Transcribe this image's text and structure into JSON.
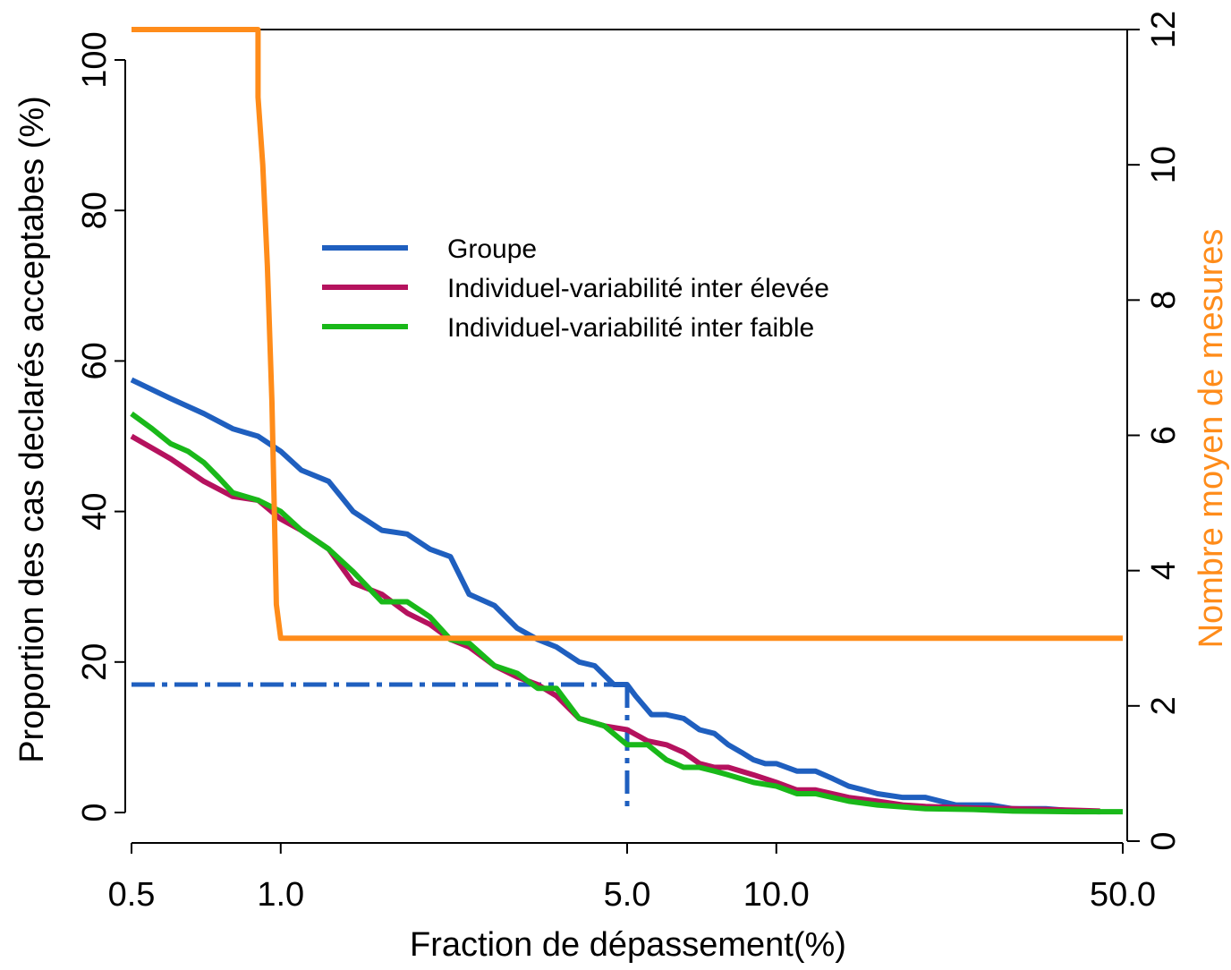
{
  "chart_data": {
    "type": "line",
    "x_scale": "log",
    "xlabel": "Fraction de dépassement(%)",
    "ylabel_left": "Proportion des cas declarés acceptabes (%)",
    "ylabel_right": "Nombre moyen de mesures",
    "xlim": [
      0.5,
      50
    ],
    "ylim_left": [
      0,
      104
    ],
    "ylim_right": [
      0,
      12
    ],
    "x_ticks": [
      0.5,
      1.0,
      5.0,
      10.0,
      50.0
    ],
    "x_tick_labels": [
      "0.5",
      "1.0",
      "5.0",
      "10.0",
      "50.0"
    ],
    "y_ticks_left": [
      0,
      20,
      40,
      60,
      80,
      100
    ],
    "y_tick_labels_left": [
      "0",
      "20",
      "40",
      "60",
      "80",
      "100"
    ],
    "y_ticks_right": [
      0,
      2,
      4,
      6,
      8,
      10,
      12
    ],
    "y_tick_labels_right": [
      "0",
      "2",
      "4",
      "6",
      "8",
      "10",
      "12"
    ],
    "grid": false,
    "legend_position": "top-center",
    "series": [
      {
        "name": "Groupe",
        "axis": "left",
        "color": "#1f5fbf",
        "x": [
          0.5,
          0.6,
          0.7,
          0.8,
          0.9,
          1.0,
          1.1,
          1.25,
          1.4,
          1.6,
          1.8,
          2.0,
          2.2,
          2.4,
          2.7,
          3.0,
          3.3,
          3.6,
          4.0,
          4.3,
          4.7,
          5.0,
          5.2,
          5.6,
          6.0,
          6.5,
          7.0,
          7.5,
          8.0,
          8.5,
          9.0,
          9.5,
          10.0,
          11.0,
          12.0,
          13.0,
          14.0,
          15.0,
          16.0,
          18.0,
          20.0,
          23.0,
          27.0,
          30.0,
          35.0,
          40.0,
          45.0
        ],
        "values": [
          57.5,
          55,
          53,
          51,
          50,
          48,
          45.5,
          44,
          40,
          37.5,
          37,
          35,
          34,
          29,
          27.5,
          24.5,
          23,
          22,
          20,
          19.5,
          17,
          17,
          15.5,
          13,
          13,
          12.5,
          11,
          10.5,
          9,
          8,
          7,
          6.5,
          6.5,
          5.5,
          5.5,
          4.5,
          3.5,
          3,
          2.5,
          2,
          2,
          1,
          1,
          0.5,
          0.5,
          0.2,
          0.1
        ]
      },
      {
        "name": "Individuel-variabilité inter élevée",
        "axis": "left",
        "color": "#b5125e",
        "x": [
          0.5,
          0.6,
          0.7,
          0.8,
          0.9,
          1.0,
          1.1,
          1.25,
          1.4,
          1.6,
          1.8,
          2.0,
          2.2,
          2.4,
          2.7,
          3.0,
          3.3,
          3.6,
          4.0,
          4.5,
          5.0,
          5.5,
          6.0,
          6.5,
          7.0,
          7.5,
          8.0,
          9.0,
          10.0,
          11.0,
          12.0,
          14.0,
          16.0,
          18.0,
          20.0,
          25.0,
          30.0,
          40.0,
          45.0
        ],
        "values": [
          50,
          47,
          44,
          42,
          41.5,
          39,
          37.5,
          35,
          30.5,
          29,
          26.5,
          25,
          23,
          22,
          19.5,
          18,
          17,
          15.5,
          12.5,
          11.5,
          11,
          9.5,
          9,
          8,
          6.5,
          6,
          6,
          5,
          4,
          3,
          3,
          2,
          1.5,
          1,
          0.8,
          0.6,
          0.5,
          0.3,
          0.2
        ]
      },
      {
        "name": "Individuel-variabilité inter faible",
        "axis": "left",
        "color": "#19b819",
        "x": [
          0.5,
          0.55,
          0.6,
          0.65,
          0.7,
          0.75,
          0.8,
          0.9,
          1.0,
          1.1,
          1.25,
          1.4,
          1.6,
          1.8,
          2.0,
          2.2,
          2.4,
          2.7,
          3.0,
          3.3,
          3.6,
          4.0,
          4.5,
          5.0,
          5.5,
          6.0,
          6.5,
          7.0,
          7.5,
          8.0,
          9.0,
          10.0,
          11.0,
          12.0,
          14.0,
          16.0,
          20.0,
          25.0,
          30.0,
          40.0,
          50.0
        ],
        "values": [
          53,
          51,
          49,
          48,
          46.5,
          44.5,
          42.5,
          41.5,
          40,
          37.5,
          35,
          32,
          28,
          28,
          26,
          23,
          22.5,
          19.5,
          18.5,
          16.5,
          16.5,
          12.5,
          11.5,
          9,
          9,
          7,
          6,
          6,
          5.5,
          5,
          4,
          3.5,
          2.5,
          2.5,
          1.5,
          1,
          0.5,
          0.4,
          0.2,
          0.1,
          0.1
        ]
      },
      {
        "name": "",
        "axis": "right",
        "color": "#ff8c1a",
        "x": [
          0.5,
          0.9,
          0.9,
          0.92,
          0.94,
          0.96,
          0.97,
          0.98,
          1.0,
          50.0
        ],
        "values": [
          12,
          12,
          11,
          10,
          8.5,
          6.5,
          5,
          3.5,
          3,
          3
        ]
      }
    ],
    "annotations": [
      {
        "type": "dashdot-reference",
        "color": "#1f5fbf",
        "x": 5.0,
        "y": 17
      }
    ]
  }
}
